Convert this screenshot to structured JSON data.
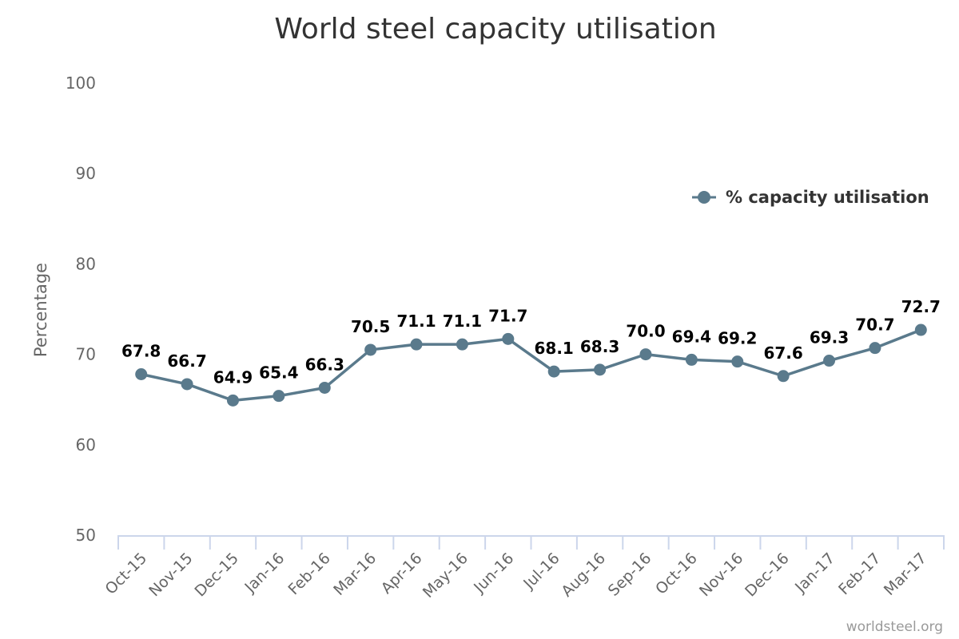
{
  "chart_data": {
    "type": "line",
    "title": "World steel capacity utilisation",
    "xlabel": "",
    "ylabel": "Percentage",
    "ylim": [
      50,
      100
    ],
    "yticks": [
      "50",
      "60",
      "70",
      "80",
      "90",
      "100"
    ],
    "categories": [
      "Oct-15",
      "Nov-15",
      "Dec-15",
      "Jan-16",
      "Feb-16",
      "Mar-16",
      "Apr-16",
      "May-16",
      "Jun-16",
      "Jul-16",
      "Aug-16",
      "Sep-16",
      "Oct-16",
      "Nov-16",
      "Dec-16",
      "Jan-17",
      "Feb-17",
      "Mar-17"
    ],
    "series": [
      {
        "name": "% capacity utilisation",
        "values": [
          67.8,
          66.7,
          64.9,
          65.4,
          66.3,
          70.5,
          71.1,
          71.1,
          71.7,
          68.1,
          68.3,
          70.0,
          69.4,
          69.2,
          67.6,
          69.3,
          70.7,
          72.7
        ],
        "labels": [
          "67.8",
          "66.7",
          "64.9",
          "65.4",
          "66.3",
          "70.5",
          "71.1",
          "71.1",
          "71.7",
          "68.1",
          "68.3",
          "70.0",
          "69.4",
          "69.2",
          "67.6",
          "69.3",
          "70.7",
          "72.7"
        ],
        "color": "#5a7a8c"
      }
    ],
    "grid": false,
    "legend_position": "right",
    "axis_color": "#ccd6eb"
  },
  "credit": "worldsteel.org"
}
